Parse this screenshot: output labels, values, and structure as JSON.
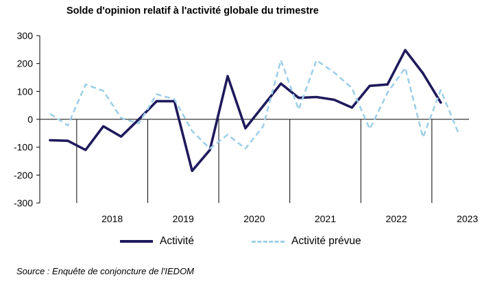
{
  "chart_data": {
    "type": "line",
    "title": "Solde d'opinion relatif à l'activité  globale du trimestre",
    "xlabel": "",
    "ylabel": "",
    "ylim": [
      -300,
      300
    ],
    "yticks": [
      -300,
      -200,
      -100,
      0,
      100,
      200,
      300
    ],
    "year_labels": [
      "2018",
      "2019",
      "2020",
      "2021",
      "2022",
      "2023"
    ],
    "x": [
      "2017T3",
      "2017T4",
      "2018T1",
      "2018T2",
      "2018T3",
      "2018T4",
      "2019T1",
      "2019T2",
      "2019T3",
      "2019T4",
      "2020T1",
      "2020T2",
      "2020T3",
      "2020T4",
      "2021T1",
      "2021T2",
      "2021T3",
      "2021T4",
      "2022T1",
      "2022T2",
      "2022T3",
      "2022T4",
      "2023T1",
      "2023T2",
      "2023T3",
      "2023T4"
    ],
    "series": [
      {
        "name": "Activité",
        "color": "#1f1a5c",
        "style": "solid",
        "values": [
          -75,
          -77,
          -110,
          -25,
          -62,
          0,
          65,
          65,
          -185,
          -110,
          155,
          -32,
          48,
          128,
          77,
          80,
          70,
          42,
          120,
          125,
          248,
          165,
          60,
          null,
          null,
          null
        ]
      },
      {
        "name": "Activité prévue",
        "color": "#9ecfe8",
        "style": "dashed",
        "values": [
          20,
          -22,
          125,
          102,
          5,
          -15,
          90,
          72,
          -42,
          -105,
          -55,
          -105,
          -25,
          212,
          35,
          212,
          168,
          112,
          -35,
          95,
          185,
          -65,
          105,
          -50,
          null,
          null
        ]
      }
    ],
    "legend_position": "bottom",
    "grid": false
  },
  "source": "Source : Enquête de conjoncture de l'IEDOM"
}
